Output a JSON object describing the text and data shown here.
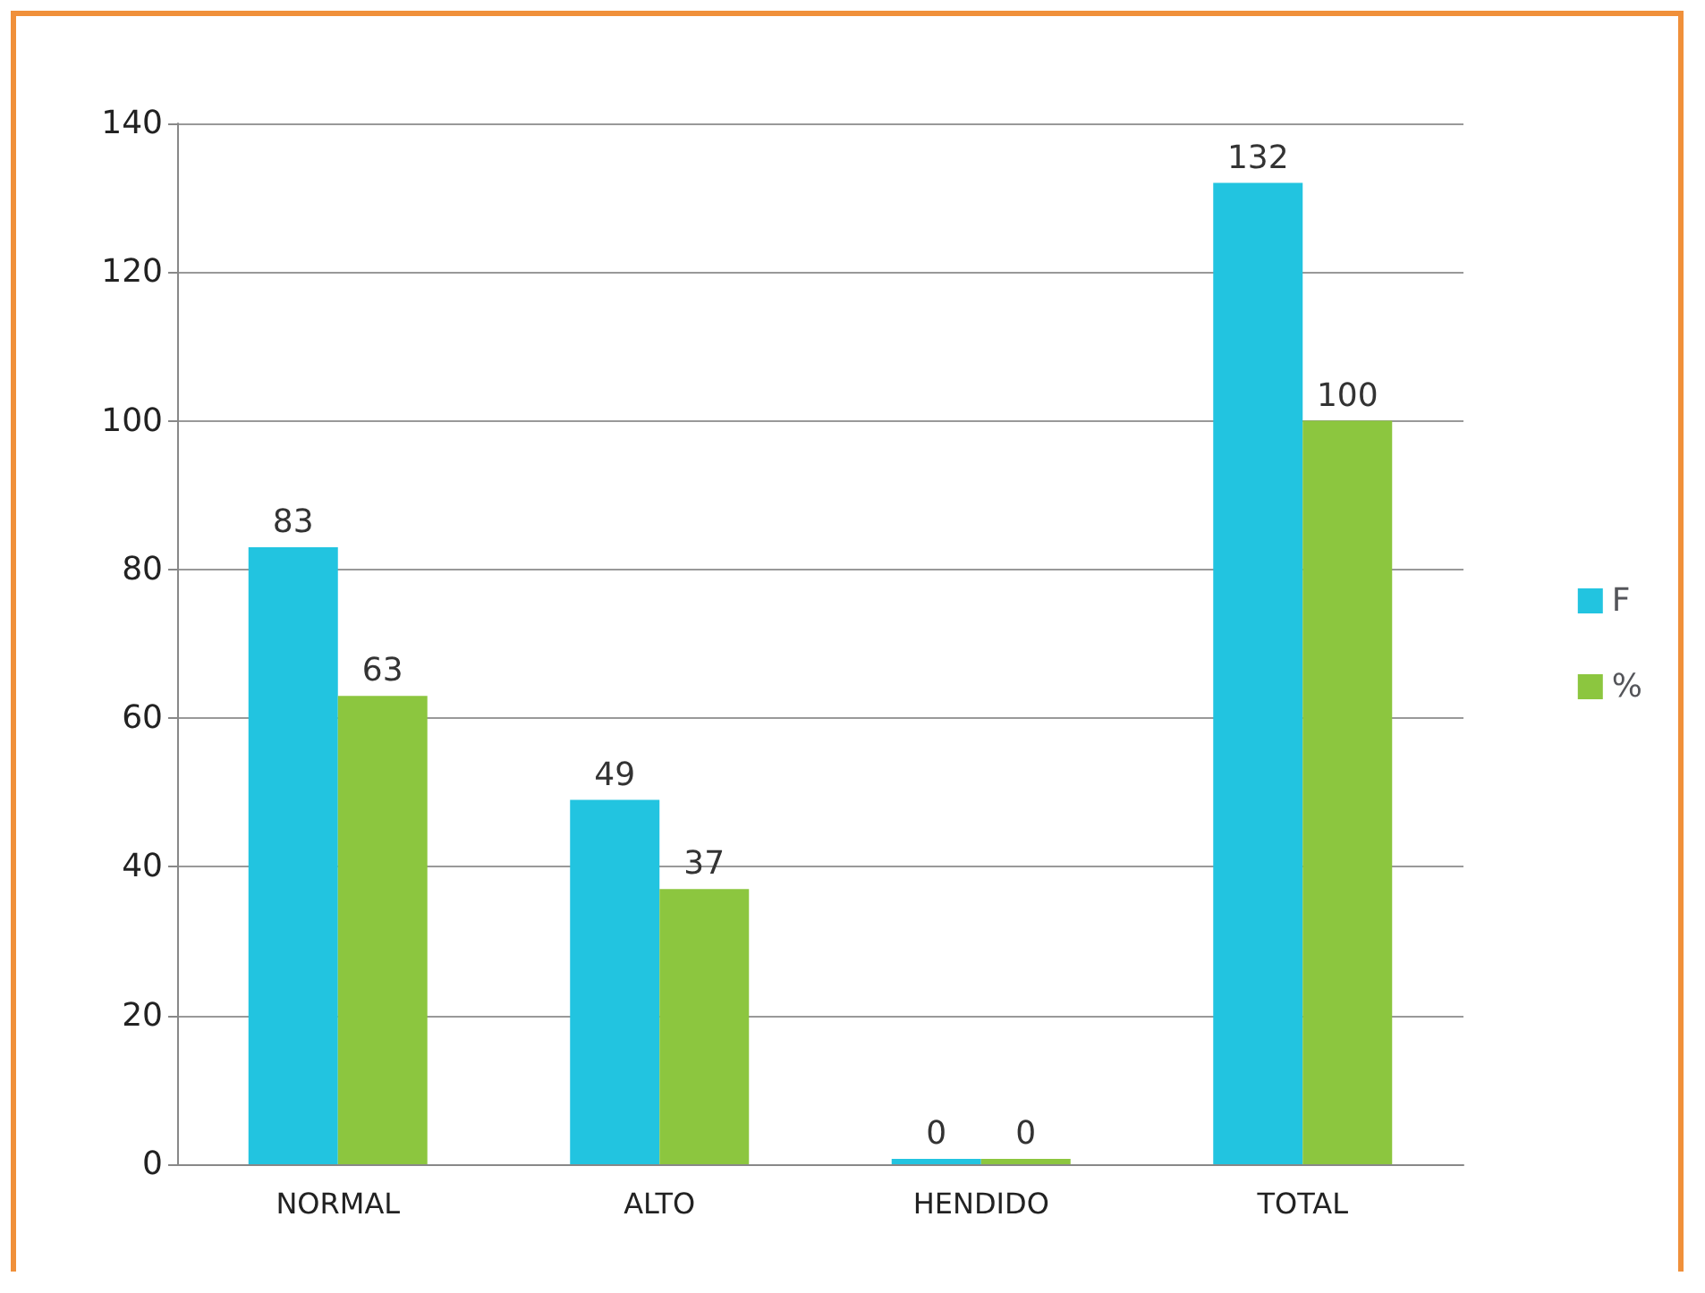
{
  "chart_data": {
    "type": "bar",
    "categories": [
      "NORMAL",
      "ALTO",
      "HENDIDO",
      "TOTAL"
    ],
    "series": [
      {
        "name": "F",
        "color": "#22c4e0",
        "values": [
          83,
          49,
          0,
          132
        ]
      },
      {
        "name": "%",
        "color": "#8cc63f",
        "values": [
          63,
          37,
          0,
          100
        ]
      }
    ],
    "ylim": [
      0,
      140
    ],
    "yticks": [
      0,
      20,
      40,
      60,
      80,
      100,
      120,
      140
    ],
    "grid": "y",
    "legend": "right",
    "data_labels": true
  }
}
